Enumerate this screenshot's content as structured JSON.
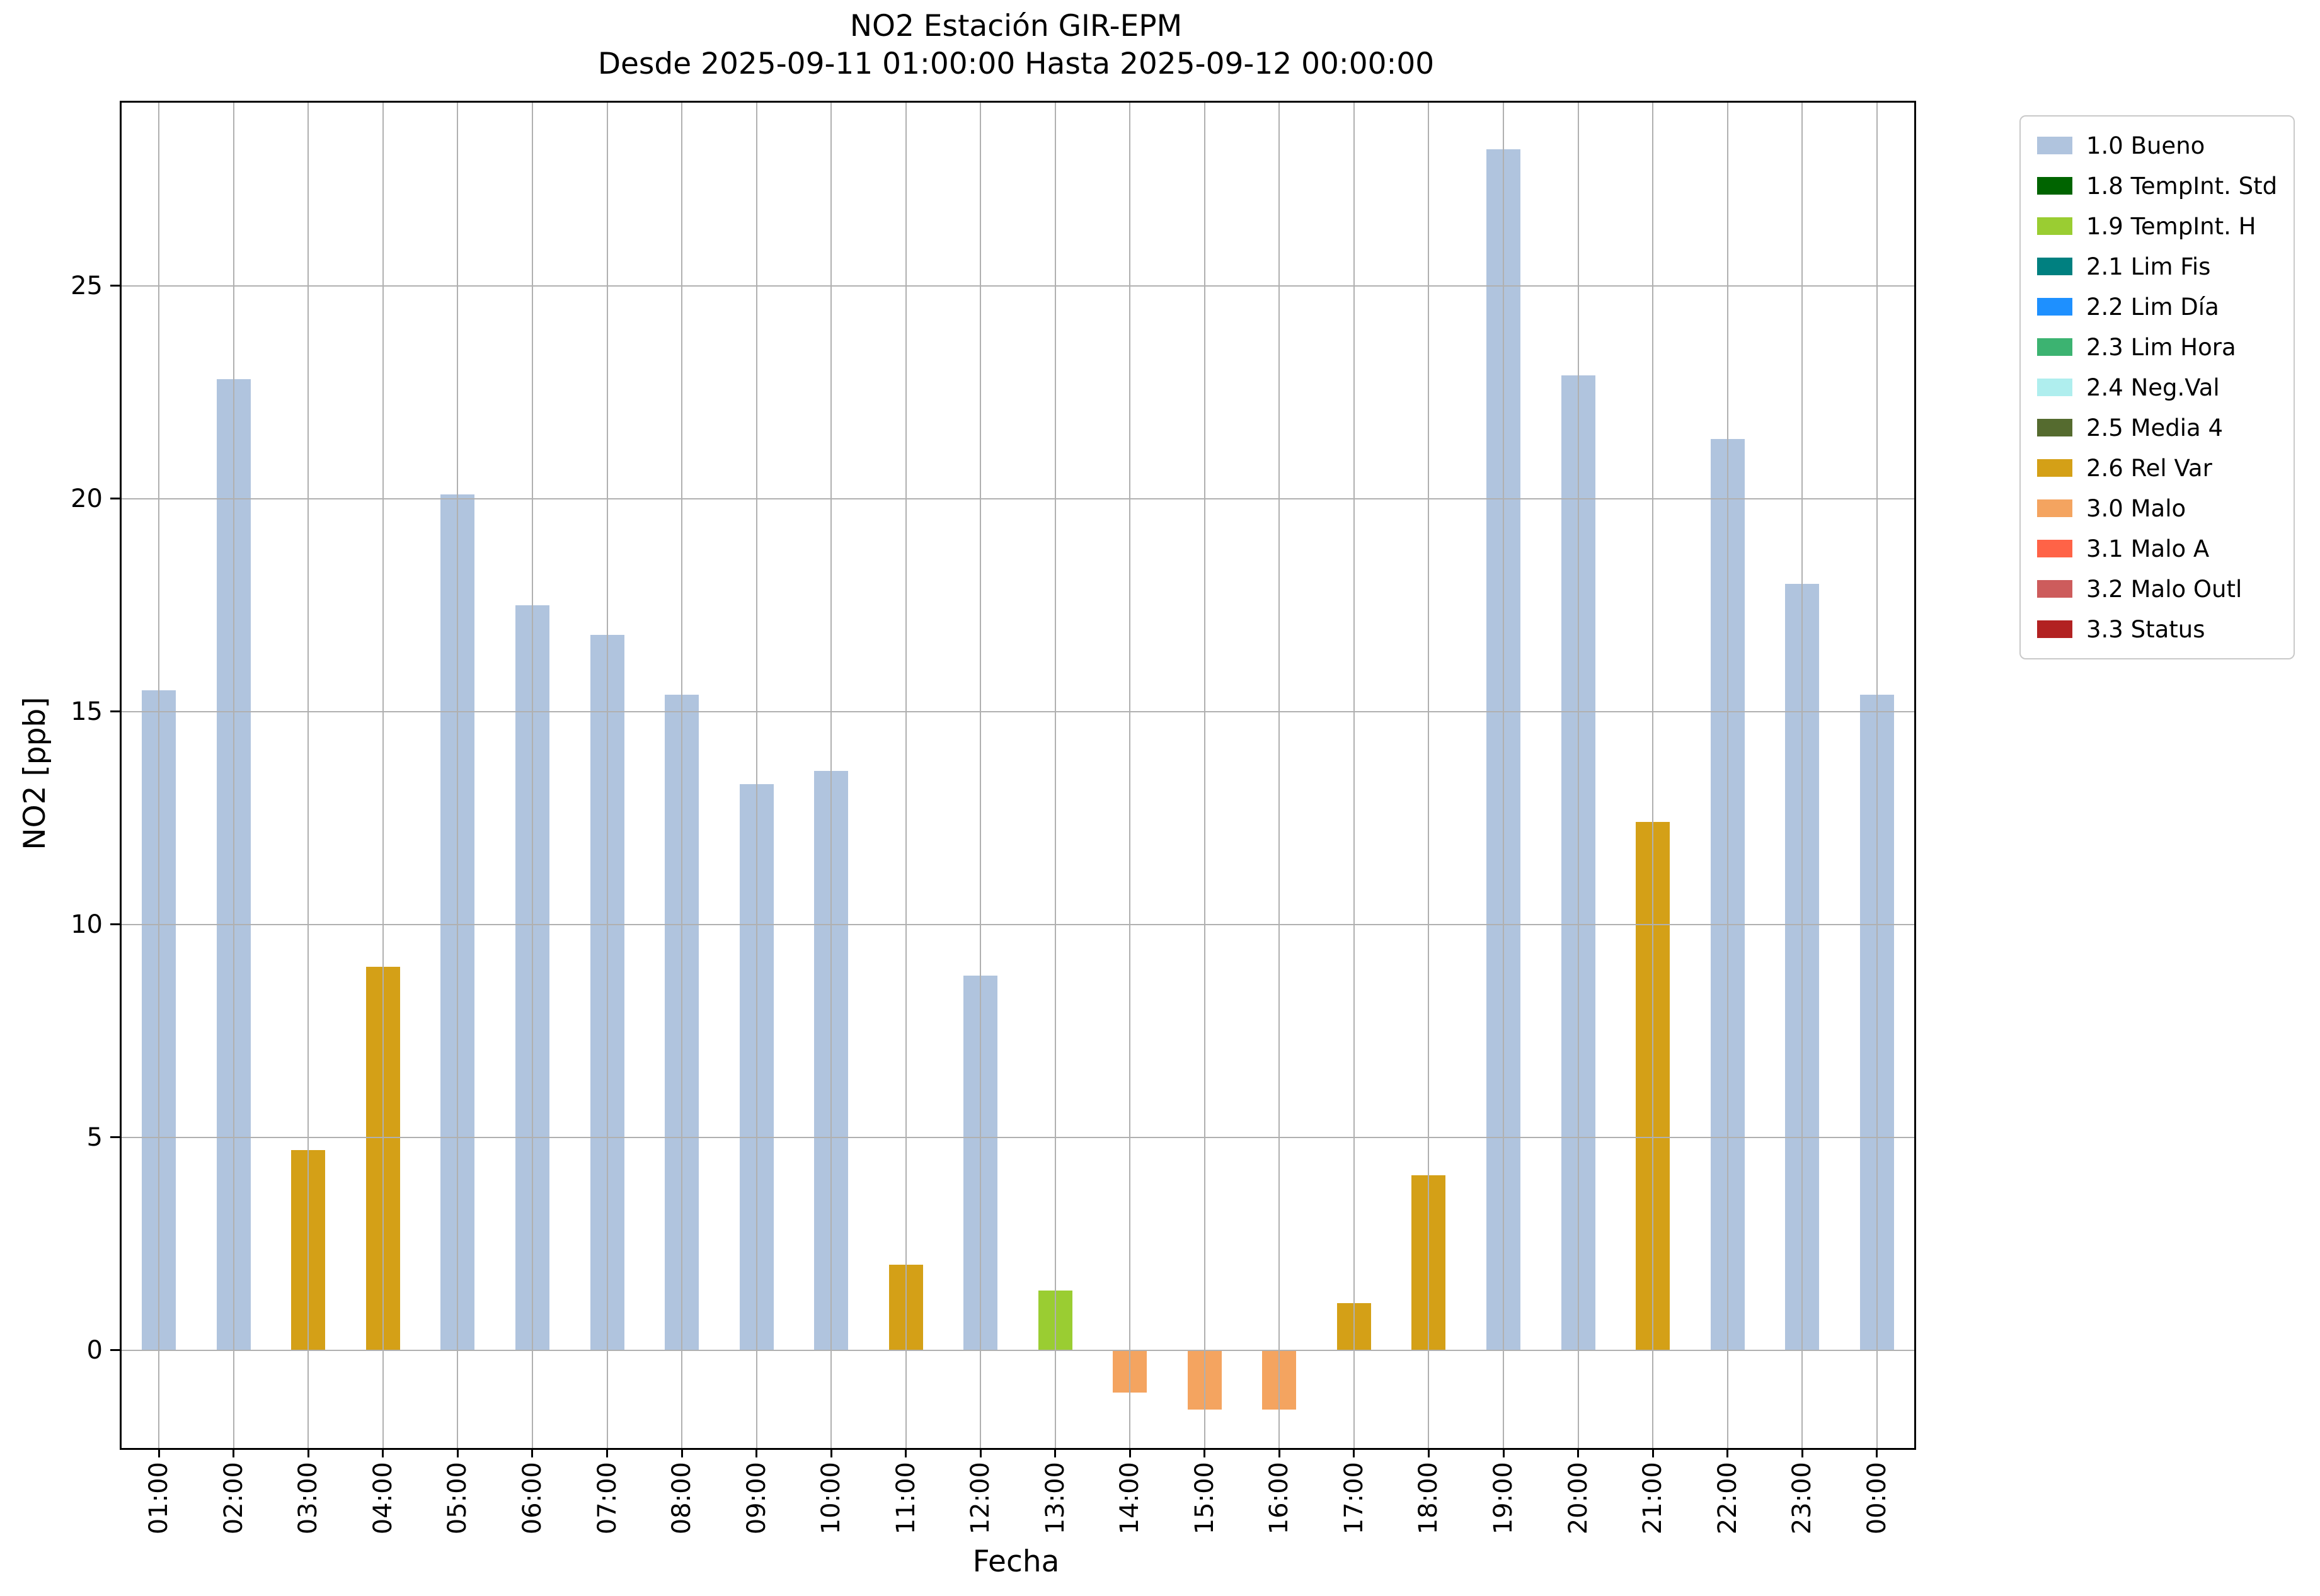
{
  "chart_data": {
    "type": "bar",
    "title": "NO2 Estación GIR-EPM",
    "subtitle": "Desde 2025-09-11 01:00:00 Hasta 2025-09-12 00:00:00",
    "xlabel": "Fecha",
    "ylabel": "NO2 [ppb]",
    "categories": [
      "01:00",
      "02:00",
      "03:00",
      "04:00",
      "05:00",
      "06:00",
      "07:00",
      "08:00",
      "09:00",
      "10:00",
      "11:00",
      "12:00",
      "13:00",
      "14:00",
      "15:00",
      "16:00",
      "17:00",
      "18:00",
      "19:00",
      "20:00",
      "21:00",
      "22:00",
      "23:00",
      "00:00"
    ],
    "values": [
      15.5,
      22.8,
      4.7,
      9.0,
      20.1,
      17.5,
      16.8,
      15.4,
      13.3,
      13.6,
      2.0,
      8.8,
      1.4,
      -1.0,
      -1.4,
      -1.4,
      1.1,
      4.1,
      28.2,
      22.9,
      12.4,
      21.4,
      18.0,
      15.4
    ],
    "bar_status": [
      "1.0",
      "1.0",
      "2.6",
      "2.6",
      "1.0",
      "1.0",
      "1.0",
      "1.0",
      "1.0",
      "1.0",
      "2.6",
      "1.0",
      "1.9",
      "3.0",
      "3.0",
      "3.0",
      "2.6",
      "2.6",
      "1.0",
      "1.0",
      "2.6",
      "1.0",
      "1.0",
      "1.0"
    ],
    "status_colors": {
      "1.0": "#b0c4de",
      "1.8": "#006400",
      "1.9": "#9acd32",
      "2.1": "#008080",
      "2.2": "#1e90ff",
      "2.3": "#3cb371",
      "2.4": "#afeeee",
      "2.5": "#556b2f",
      "2.6": "#d4a017",
      "3.0": "#f4a460",
      "3.1": "#ff6347",
      "3.2": "#cd5c5c",
      "3.3": "#b22222"
    },
    "legend": [
      {
        "code": "1.0",
        "label": "1.0 Bueno"
      },
      {
        "code": "1.8",
        "label": "1.8 TempInt. Std"
      },
      {
        "code": "1.9",
        "label": "1.9 TempInt. H"
      },
      {
        "code": "2.1",
        "label": "2.1 Lim Fis"
      },
      {
        "code": "2.2",
        "label": "2.2 Lim Día"
      },
      {
        "code": "2.3",
        "label": "2.3 Lim Hora"
      },
      {
        "code": "2.4",
        "label": "2.4 Neg.Val"
      },
      {
        "code": "2.5",
        "label": "2.5 Media 4"
      },
      {
        "code": "2.6",
        "label": "2.6 Rel Var"
      },
      {
        "code": "3.0",
        "label": "3.0 Malo"
      },
      {
        "code": "3.1",
        "label": "3.1 Malo A"
      },
      {
        "code": "3.2",
        "label": "3.2 Malo Outl"
      },
      {
        "code": "3.3",
        "label": "3.3 Status"
      }
    ],
    "ylim": [
      -2.3,
      29.3
    ],
    "yticks": [
      0,
      5,
      10,
      15,
      20,
      25
    ],
    "grid": true,
    "legend_position": "upper right outside"
  }
}
